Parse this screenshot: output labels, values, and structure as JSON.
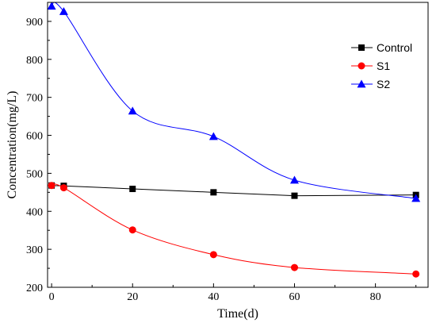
{
  "chart_data": {
    "type": "line",
    "xlabel": "Time(d)",
    "ylabel": "Concentration(mg/L)",
    "xlim": [
      -1,
      93
    ],
    "ylim": [
      200,
      950
    ],
    "x_ticks": [
      0,
      20,
      40,
      60,
      80
    ],
    "y_ticks": [
      200,
      300,
      400,
      500,
      600,
      700,
      800,
      900
    ],
    "x_tick_labels": [
      "0",
      "20",
      "40",
      "60",
      "80"
    ],
    "y_tick_labels": [
      "200",
      "300",
      "400",
      "500",
      "600",
      "700",
      "800",
      "900"
    ],
    "grid": false,
    "legend_position": "top-right",
    "series": [
      {
        "name": "Control",
        "marker": "square",
        "color": "#000000",
        "x": [
          0,
          3,
          20,
          40,
          60,
          90
        ],
        "y": [
          468,
          467,
          459,
          450,
          441,
          443
        ]
      },
      {
        "name": "S1",
        "marker": "circle",
        "color": "#ff0000",
        "x": [
          0,
          3,
          20,
          40,
          60,
          90
        ],
        "y": [
          468,
          462,
          351,
          286,
          252,
          235
        ]
      },
      {
        "name": "S2",
        "marker": "triangle",
        "color": "#0000ff",
        "x": [
          0,
          3,
          20,
          40,
          60,
          90
        ],
        "y": [
          940,
          926,
          664,
          597,
          482,
          434
        ]
      }
    ]
  }
}
